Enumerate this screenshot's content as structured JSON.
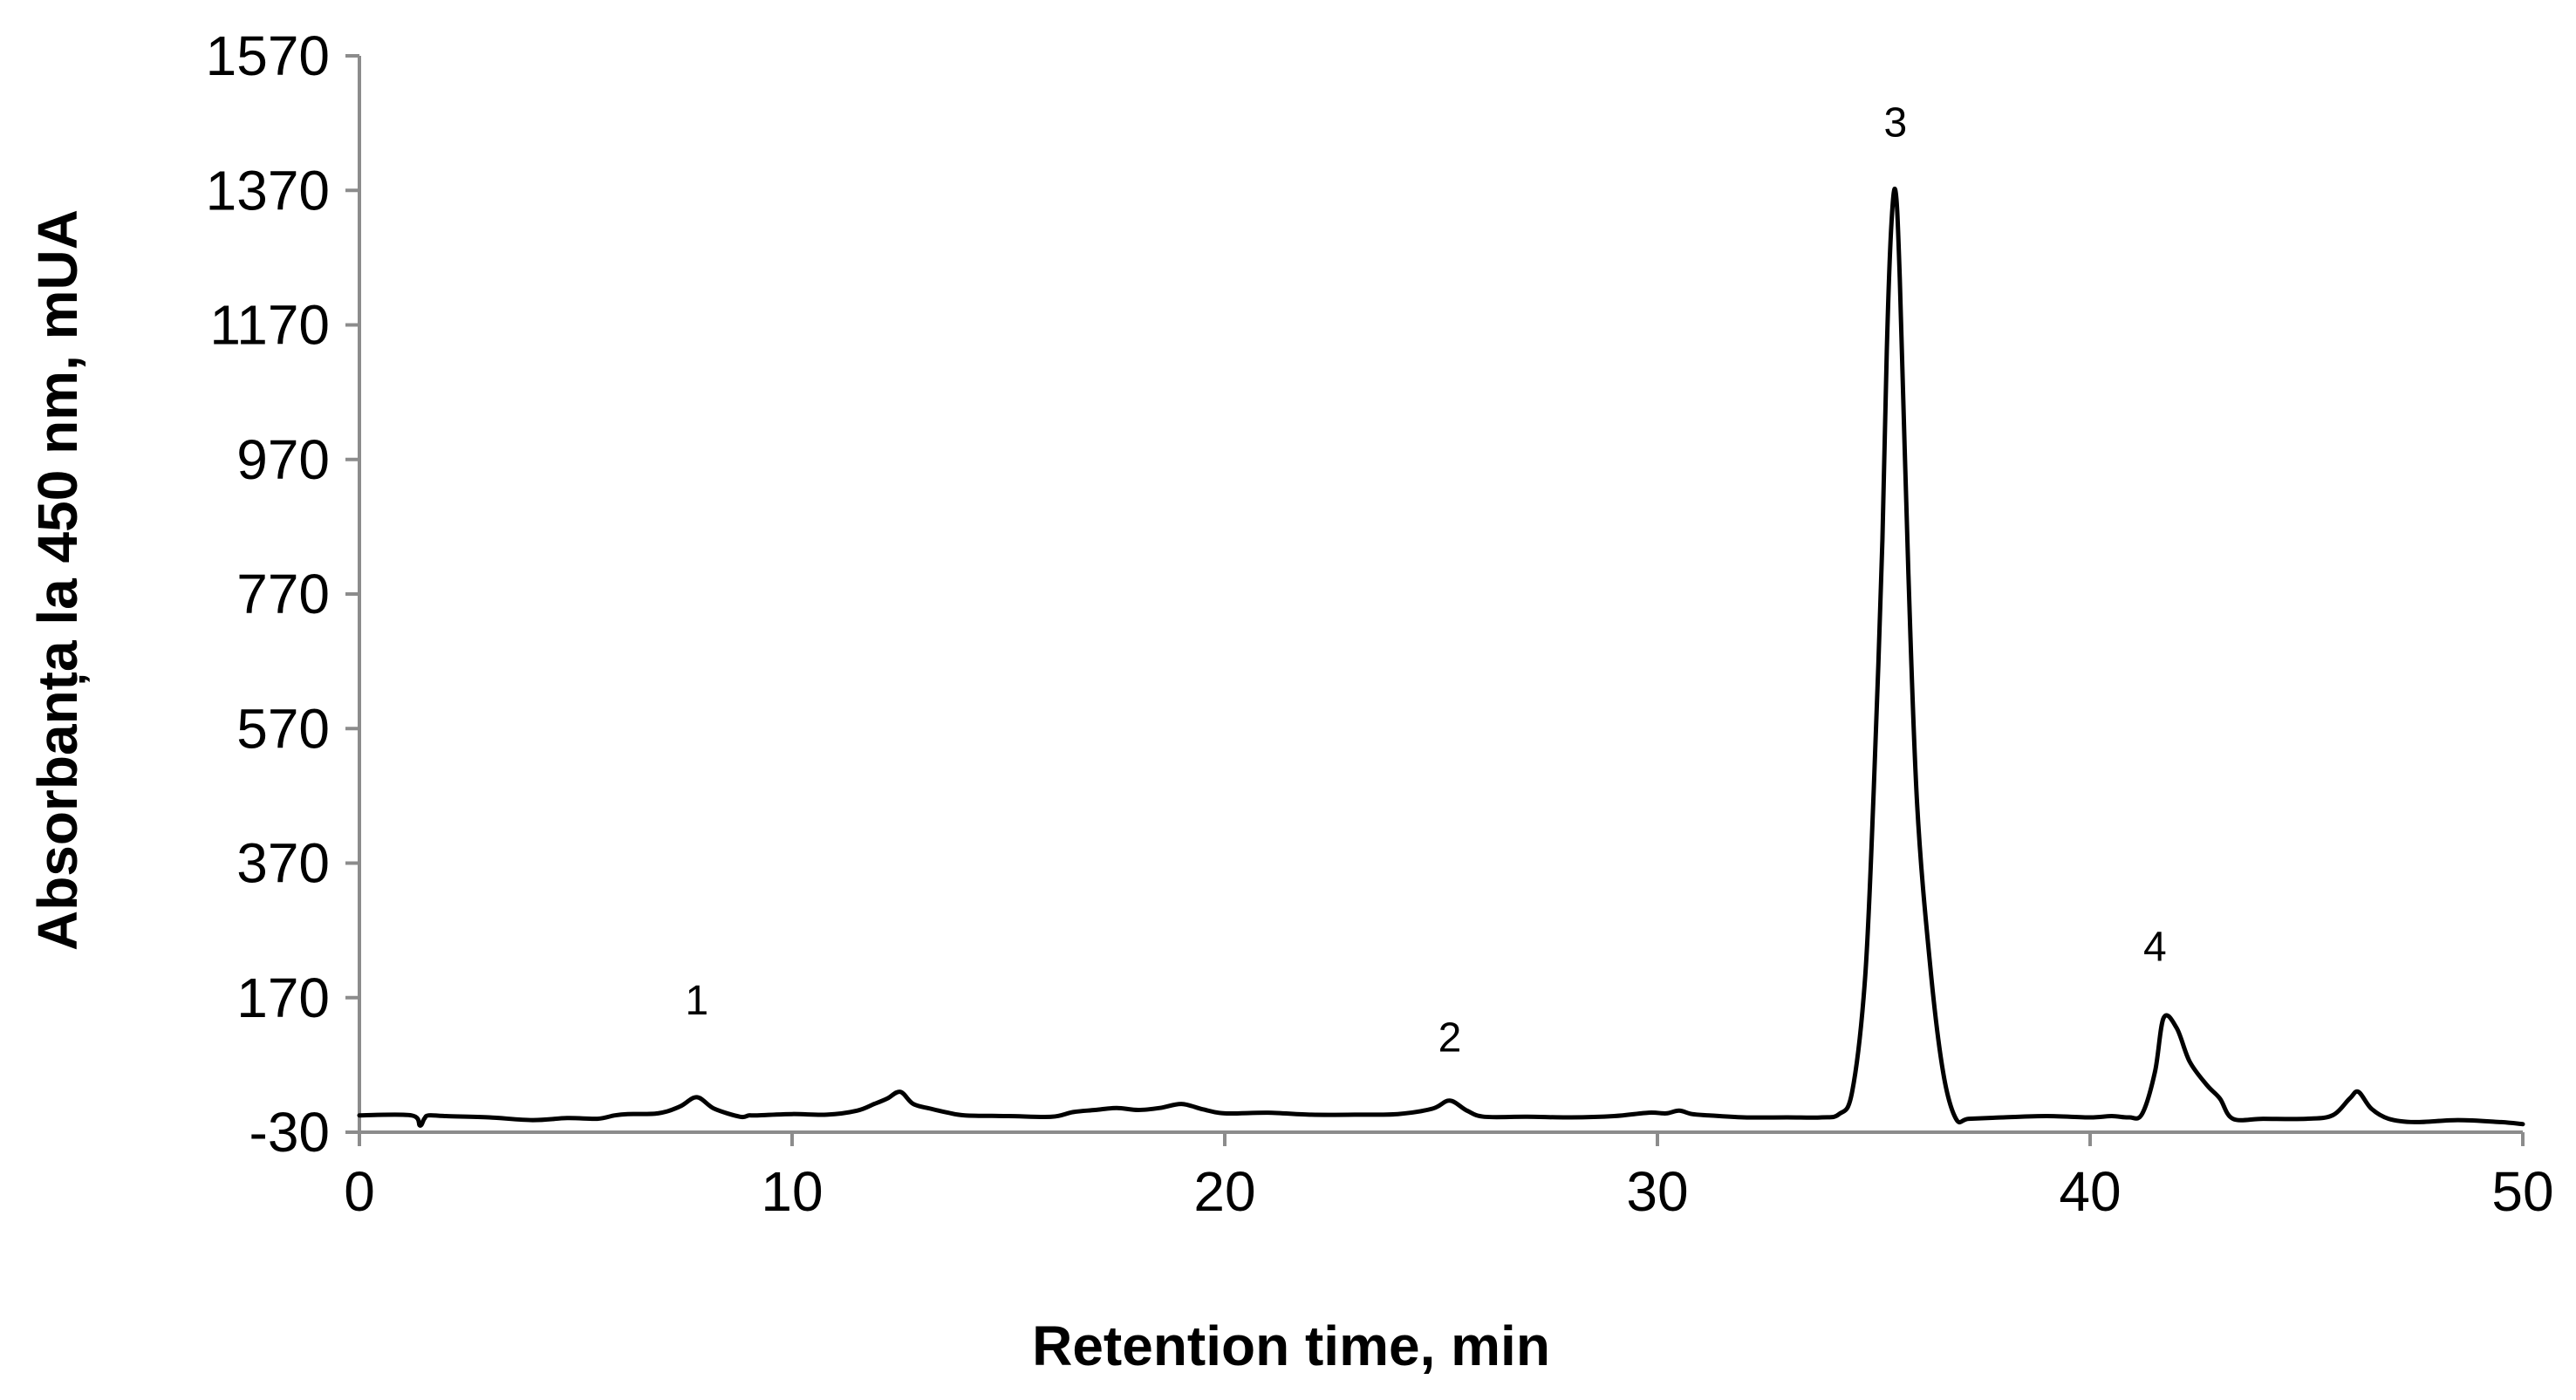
{
  "chart_data": {
    "type": "line",
    "title": "",
    "xlabel": "Retention time, min",
    "ylabel": "Absorbanța la 450 nm, mUA",
    "xlim": [
      0,
      50
    ],
    "ylim": [
      -30,
      1570
    ],
    "x_ticks": [
      0,
      10,
      20,
      30,
      40,
      50
    ],
    "x_tick_labels": [
      "0",
      "10",
      "20",
      "30",
      "40",
      "50"
    ],
    "y_ticks": [
      -30,
      170,
      370,
      570,
      770,
      970,
      1170,
      1370,
      1570
    ],
    "y_tick_labels": [
      "-30",
      "170",
      "370",
      "570",
      "770",
      "970",
      "1170",
      "1370",
      "1570"
    ],
    "grid": false,
    "legend": "none",
    "line_color": "#000000",
    "axis_color": "#8c8c8c",
    "series": [
      {
        "x": [
          0,
          1.2,
          1.4,
          1.5,
          1.6,
          2.0,
          3.0,
          4.0,
          4.8,
          5.5,
          5.9,
          6.2,
          6.9,
          7.4,
          7.8,
          8.2,
          8.8,
          9.0,
          9.2,
          10.0,
          10.8,
          11.5,
          11.9,
          12.2,
          12.5,
          12.8,
          13.2,
          13.6,
          14.0,
          15.0,
          16.0,
          16.5,
          17.0,
          17.5,
          18.0,
          18.5,
          19.0,
          19.5,
          20.0,
          21.0,
          22.0,
          23.0,
          24.0,
          24.8,
          25.2,
          25.6,
          26.0,
          27.0,
          28.0,
          29.0,
          29.8,
          30.2,
          30.5,
          30.8,
          31.2,
          32.0,
          33.0,
          33.8,
          34.2,
          34.5,
          34.8,
          35.0,
          35.2,
          35.3,
          35.4,
          35.5,
          35.6,
          35.8,
          36.0,
          36.3,
          36.6,
          36.9,
          37.2,
          38.0,
          39.0,
          40.0,
          40.5,
          40.9,
          41.2,
          41.5,
          41.7,
          42.0,
          42.3,
          42.7,
          43.0,
          43.3,
          44.0,
          45.0,
          45.6,
          46.0,
          46.2,
          46.5,
          46.9,
          47.5,
          48.5,
          49.5,
          50.0
        ],
        "y": [
          -5,
          -5,
          -20,
          -10,
          -5,
          -6,
          -8,
          -12,
          -9,
          -10,
          -5,
          -3,
          -2,
          8,
          22,
          5,
          -7,
          -5,
          -5,
          -3,
          -4,
          2,
          12,
          20,
          30,
          12,
          5,
          -1,
          -5,
          -6,
          -7,
          0,
          3,
          6,
          3,
          6,
          12,
          4,
          -2,
          -1,
          -4,
          -4,
          -3,
          5,
          17,
          2,
          -7,
          -7,
          -8,
          -6,
          -1,
          -2,
          2,
          -3,
          -5,
          -8,
          -8,
          -8,
          -3,
          30,
          200,
          480,
          850,
          1130,
          1310,
          1370,
          1240,
          800,
          460,
          220,
          60,
          -10,
          -10,
          -8,
          -6,
          -8,
          -6,
          -8,
          -3,
          60,
          140,
          125,
          75,
          40,
          20,
          -10,
          -10,
          -10,
          -5,
          20,
          30,
          5,
          -10,
          -15,
          -12,
          -15,
          -18
        ]
      }
    ],
    "annotations": [
      {
        "text": "1",
        "x": 7.8,
        "y": 145
      },
      {
        "text": "2",
        "x": 25.2,
        "y": 90
      },
      {
        "text": "3",
        "x": 35.5,
        "y": 1450
      },
      {
        "text": "4",
        "x": 41.5,
        "y": 225
      }
    ]
  }
}
